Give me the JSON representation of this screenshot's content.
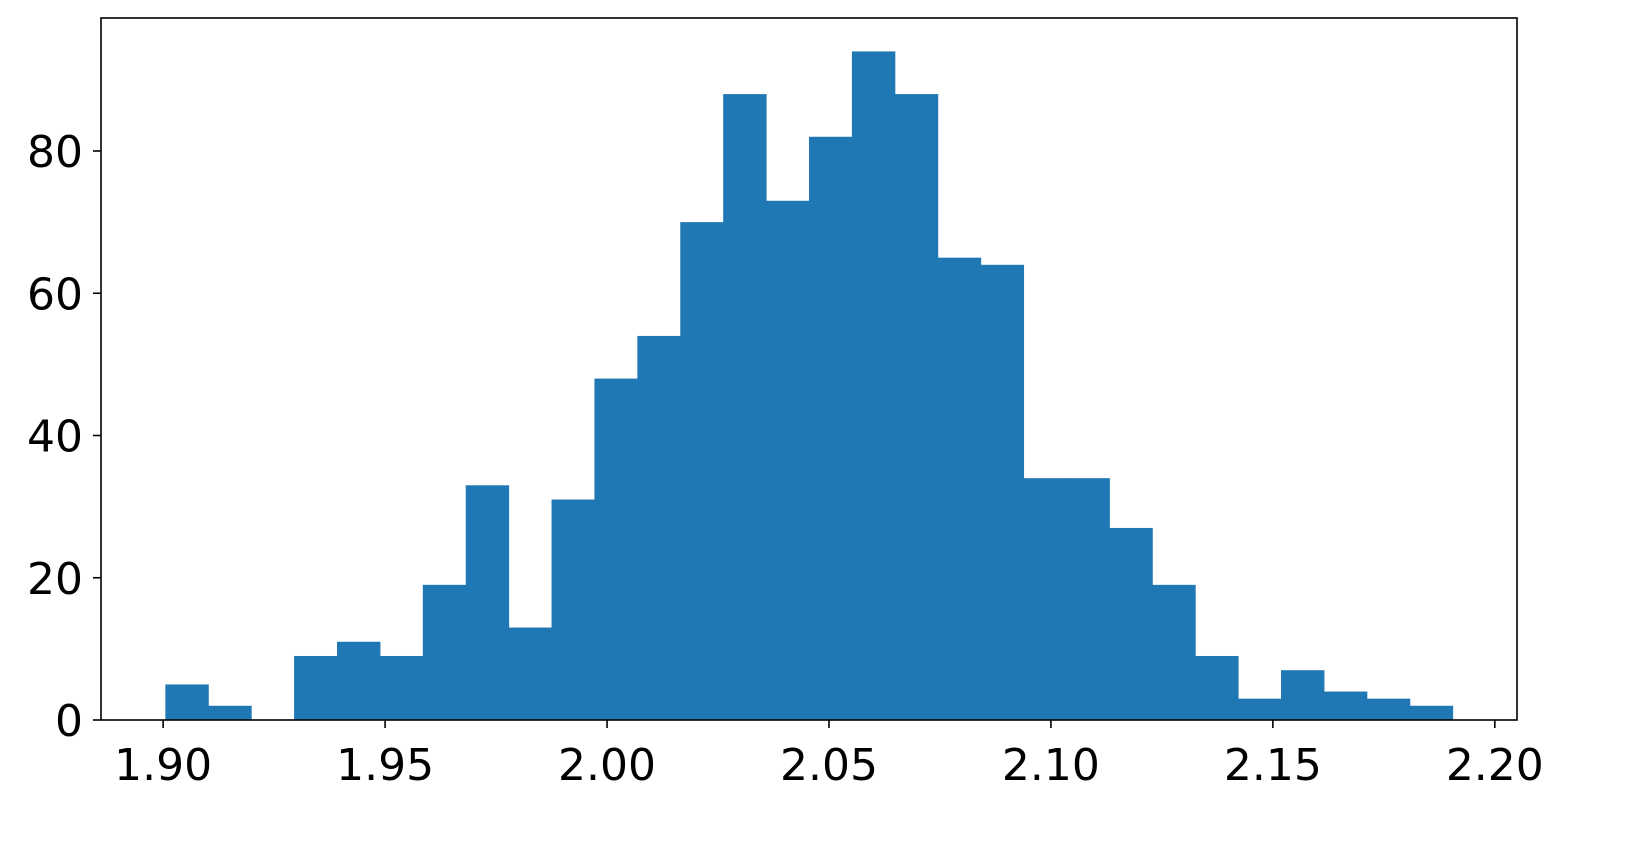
{
  "chart_data": {
    "type": "bar",
    "subtype": "histogram",
    "title": "",
    "xlabel": "",
    "ylabel": "",
    "bin_start": 1.9005,
    "bin_end": 2.1905,
    "counts": [
      5,
      2,
      0,
      9,
      11,
      9,
      19,
      33,
      13,
      31,
      48,
      54,
      70,
      88,
      73,
      82,
      94,
      88,
      65,
      64,
      34,
      34,
      27,
      19,
      9,
      3,
      7,
      4,
      3,
      2
    ],
    "xlim": [
      1.886,
      2.205
    ],
    "ylim": [
      0,
      98.7
    ],
    "xticks": [
      "1.90",
      "1.95",
      "2.00",
      "2.05",
      "2.10",
      "2.15",
      "2.20"
    ],
    "yticks": [
      "0",
      "20",
      "40",
      "60",
      "80"
    ],
    "grid": false,
    "legend": "none",
    "bar_color": "#1f77b4"
  }
}
